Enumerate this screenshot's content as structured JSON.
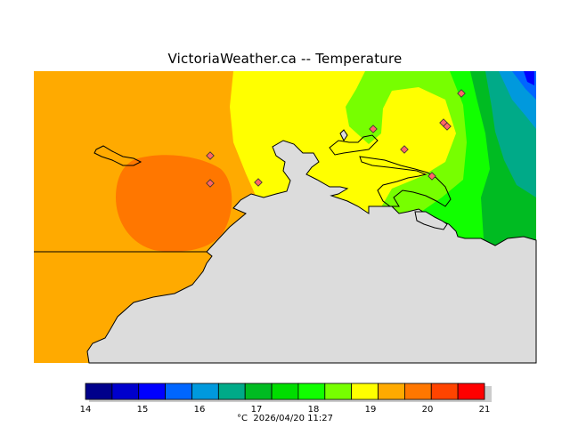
{
  "title": "VictoriaWeather.ca -- Temperature",
  "caption": {
    "unit": "°C",
    "timestamp": "2026/04/20 11:27"
  },
  "legend": {
    "ticks": [
      "14",
      "15",
      "16",
      "17",
      "18",
      "19",
      "20",
      "21"
    ],
    "colors": [
      "#00008b",
      "#0000cd",
      "#0000ff",
      "#0066ff",
      "#0099dd",
      "#00aa88",
      "#00bb22",
      "#00dd00",
      "#11ff00",
      "#77ff00",
      "#ffff00",
      "#ffaa00",
      "#ff7700",
      "#ff4400",
      "#ff0000"
    ]
  },
  "map": {
    "background_color": "#ffffff",
    "land_color": "#dcdcdc",
    "zone_colors": {
      "t19_5": "#ffaa00",
      "t20": "#ff7700",
      "t18_5": "#ffff00",
      "t18": "#77ff00",
      "t17_5": "#11ff00",
      "t17": "#00bb22",
      "t16_5": "#00aa88",
      "t16": "#0099dd",
      "t15_5": "#0066ff",
      "t15": "#0000ff"
    },
    "station_color": "#ff6666"
  }
}
